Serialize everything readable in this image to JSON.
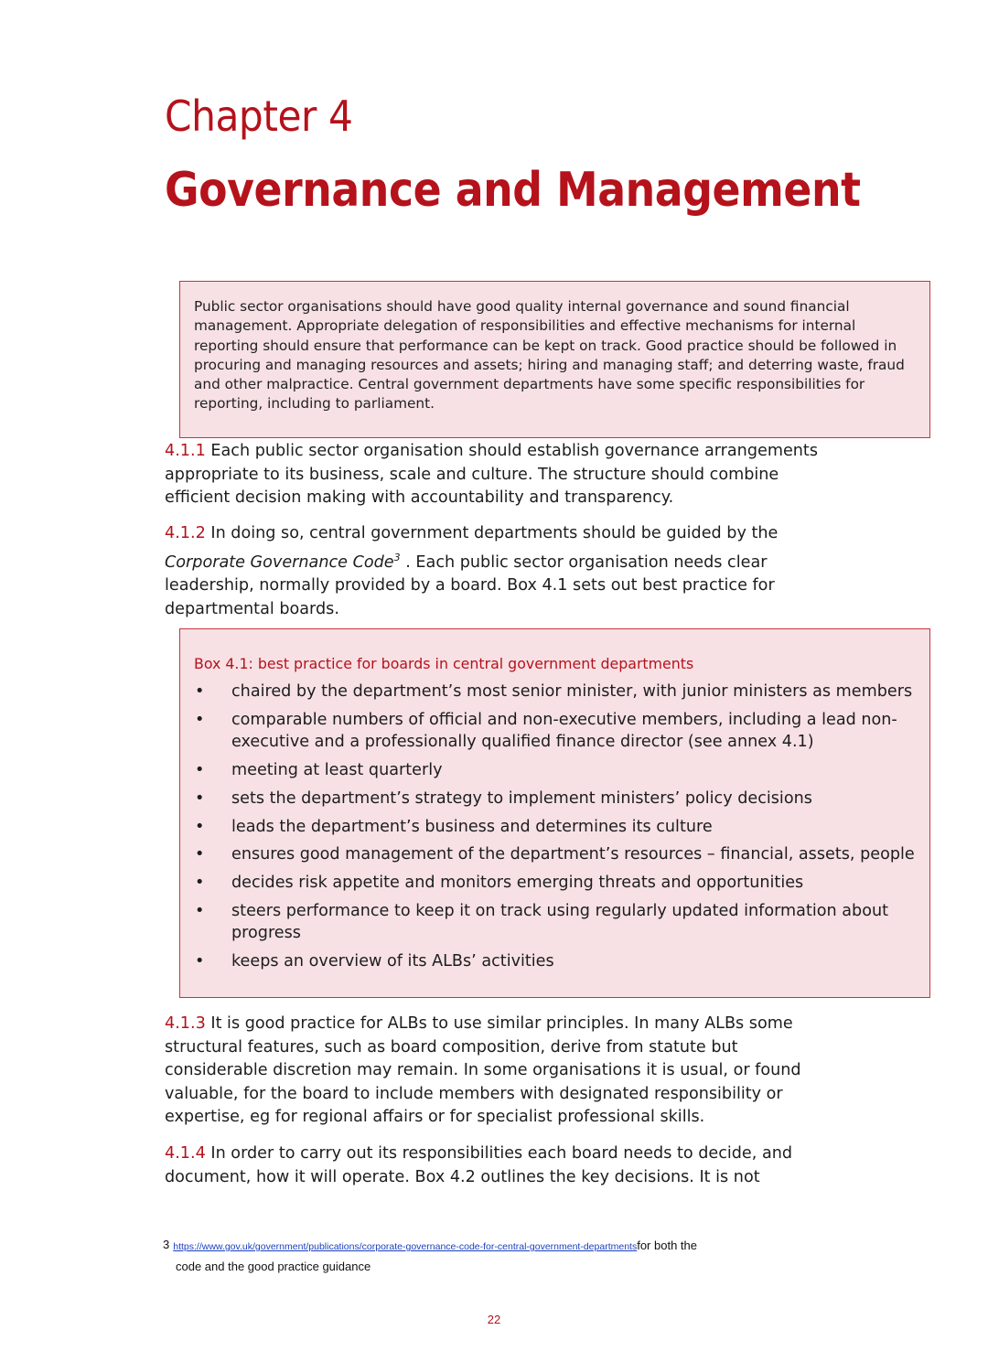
{
  "heading": {
    "chapter": "Chapter 4",
    "title": "Governance and Management"
  },
  "summary_box": {
    "text": "Public sector organisations should have good quality internal governance and sound financial management. Appropriate delegation of responsibilities and effective mechanisms for internal reporting should ensure that performance can be kept on track. Good practice should be followed in procuring and managing resources and assets; hiring and managing staff; and deterring waste, fraud and other malpractice. Central government departments have some specific responsibilities for reporting, including to parliament."
  },
  "paragraphs": {
    "p411": {
      "number": "4.1.1",
      "text": "Each public sector organisation should establish governance arrangements appropriate to its business, scale and culture. The structure should combine efficient decision making with accountability and transparency."
    },
    "p412": {
      "number": "4.1.2",
      "text_before": "In doing so, central government departments should be guided by the",
      "italic": "Corporate Governance Code",
      "footnote_ref": "3",
      "text_after": ". Each public sector organisation needs clear leadership, normally provided by a board. Box 4.1 sets out best practice for departmental boards."
    },
    "p413": {
      "number": "4.1.3",
      "text": "It is good practice for ALBs to use similar principles. In many ALBs some structural features, such as board composition, derive from statute but considerable discretion may remain. In some organisations it is usual, or found valuable, for the board to include members with designated responsibility or expertise, eg for regional affairs or for specialist professional skills."
    },
    "p414": {
      "number": "4.1.4",
      "text": "In order to carry out its responsibilities each board needs to decide, and document, how it will operate. Box 4.2 outlines the key decisions. It is not"
    }
  },
  "box41": {
    "title": "Box 4.1: best practice for boards in central government departments",
    "bullet": "•",
    "items": [
      "chaired by the department’s most senior minister, with junior ministers as members",
      "comparable numbers of official and non-executive members, including a lead non-executive and a professionally qualified finance director (see annex 4.1)",
      "meeting at least quarterly",
      "sets the department’s strategy to implement ministers’ policy decisions",
      "leads the department’s business and determines its culture",
      "ensures good management of the department’s resources – financial, assets, people",
      "decides risk appetite and monitors emerging threats and opportunities",
      "steers performance to keep it on track using regularly updated information about progress",
      "keeps an overview of its ALBs’ activities"
    ]
  },
  "footnote": {
    "number": "3",
    "url": "https://www.gov.uk/government/publications/corporate-governance-code-for-central-government-departments",
    "text_line1": "for both the",
    "text_line2": "code and the good practice guidance"
  },
  "page_number": "22",
  "colors": {
    "accent": "#b5121b",
    "box_fill": "#f7e1e5",
    "box_border": "#c8323c",
    "link": "#1a3fbf"
  }
}
